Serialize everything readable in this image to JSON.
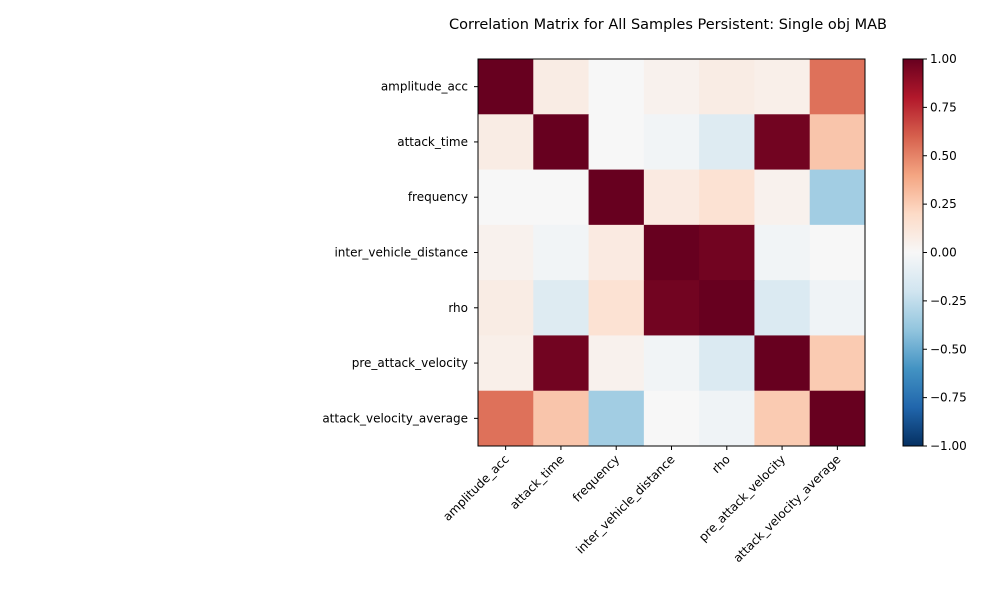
{
  "chart_data": {
    "type": "heatmap",
    "title": "Correlation Matrix for All Samples Persistent: Single obj MAB",
    "xlabel": "",
    "ylabel": "",
    "variables": [
      "amplitude_acc",
      "attack_time",
      "frequency",
      "inter_vehicle_distance",
      "rho",
      "pre_attack_velocity",
      "attack_velocity_average"
    ],
    "values": [
      [
        1.0,
        0.08,
        0.0,
        0.04,
        0.08,
        0.06,
        0.55
      ],
      [
        0.08,
        1.0,
        0.0,
        -0.03,
        -0.13,
        0.97,
        0.28
      ],
      [
        0.0,
        0.0,
        1.0,
        0.09,
        0.15,
        0.04,
        -0.35
      ],
      [
        0.04,
        -0.03,
        0.09,
        1.0,
        0.97,
        -0.03,
        0.0
      ],
      [
        0.08,
        -0.13,
        0.15,
        0.97,
        1.0,
        -0.15,
        -0.04
      ],
      [
        0.06,
        0.97,
        0.04,
        -0.03,
        -0.15,
        1.0,
        0.26
      ],
      [
        0.55,
        0.28,
        -0.35,
        0.0,
        -0.04,
        0.26,
        1.0
      ]
    ],
    "colorbar": {
      "range": [
        -1.0,
        1.0
      ],
      "ticks": [
        "-1.00",
        "-0.75",
        "-0.50",
        "-0.25",
        "0.00",
        "0.25",
        "0.50",
        "0.75",
        "1.00"
      ],
      "colormap": "RdBu_r"
    },
    "grid": false,
    "legend": "none"
  }
}
